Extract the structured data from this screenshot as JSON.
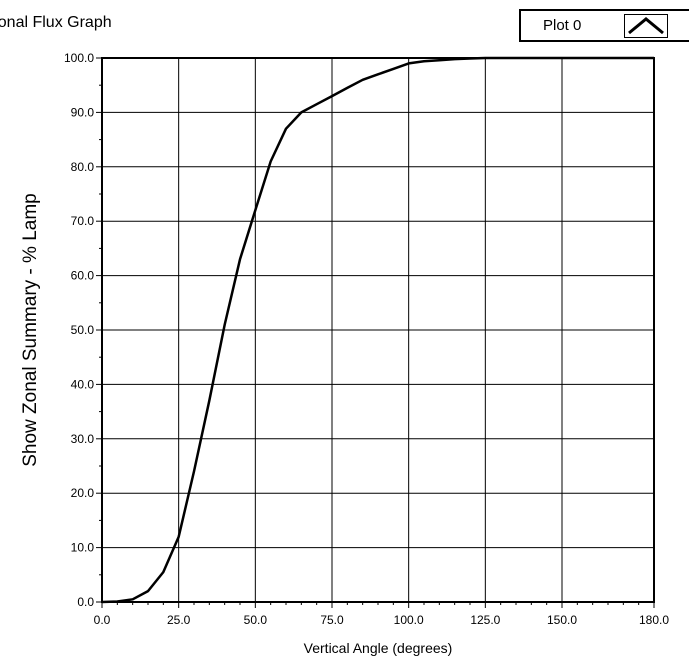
{
  "graph": {
    "title": "Zonal Flux Graph",
    "legend_label": "Plot 0",
    "legend_icon": "line-style-icon"
  },
  "colors": {
    "background": "#ffffff",
    "plot_line": "#000000",
    "grid": "#000000"
  },
  "chart_data": {
    "type": "line",
    "title": "Zonal Flux Graph",
    "xlabel": "Vertical Angle (degrees)",
    "ylabel": "Show Zonal Summary - % Lamp",
    "xlim": [
      0,
      180
    ],
    "ylim": [
      0,
      100
    ],
    "x_ticks": [
      0,
      25,
      50,
      75,
      100,
      125,
      150,
      180
    ],
    "x_tick_labels": [
      "0.0",
      "25.0",
      "50.0",
      "75.0",
      "100.0",
      "125.0",
      "150.0",
      "180.0"
    ],
    "y_ticks": [
      0,
      10,
      20,
      30,
      40,
      50,
      60,
      70,
      80,
      90,
      100
    ],
    "y_tick_labels": [
      "0.0",
      "10.0",
      "20.0",
      "30.0",
      "40.0",
      "50.0",
      "60.0",
      "70.0",
      "80.0",
      "90.0",
      "100.0"
    ],
    "grid": true,
    "legend_position": "top-right",
    "series": [
      {
        "name": "Plot 0",
        "x": [
          0,
          5,
          10,
          15,
          20,
          25,
          30,
          35,
          40,
          45,
          50,
          55,
          60,
          65,
          70,
          75,
          80,
          85,
          90,
          95,
          100,
          105,
          110,
          115,
          120,
          125,
          130,
          140,
          150,
          160,
          170,
          180
        ],
        "y": [
          0,
          0.1,
          0.5,
          2,
          5.5,
          12,
          24,
          37,
          51,
          63,
          72,
          81,
          87,
          90,
          91.5,
          93,
          94.5,
          96,
          97,
          98,
          99,
          99.4,
          99.6,
          99.8,
          99.9,
          100,
          100,
          100,
          100,
          100,
          100,
          100
        ]
      }
    ]
  }
}
